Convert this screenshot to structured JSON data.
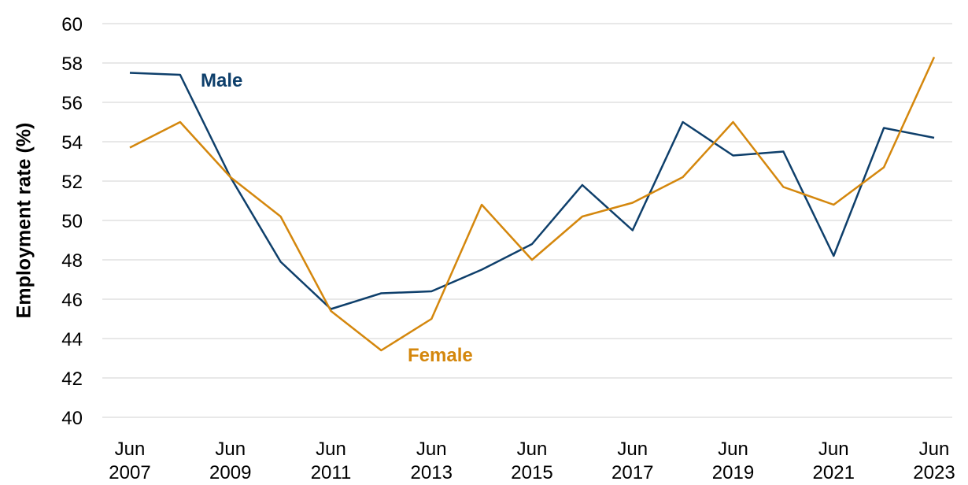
{
  "chart_data": {
    "type": "line",
    "y_label": "Employment rate (%)",
    "categories": [
      "Jun 2007",
      null,
      "Jun 2009",
      null,
      "Jun 2011",
      null,
      "Jun 2013",
      null,
      "Jun 2015",
      null,
      "Jun 2017",
      null,
      "Jun 2019",
      null,
      "Jun 2021",
      null,
      "Jun 2023"
    ],
    "series": [
      {
        "name": "Male",
        "color": "#0e3f6b",
        "values": [
          57.5,
          57.4,
          52.2,
          47.9,
          45.5,
          46.3,
          46.4,
          47.5,
          48.8,
          51.8,
          49.5,
          55.0,
          53.3,
          53.5,
          48.2,
          54.7,
          54.2
        ]
      },
      {
        "name": "Female",
        "color": "#d4870d",
        "values": [
          53.7,
          55.0,
          52.2,
          50.2,
          45.4,
          43.4,
          45.0,
          50.8,
          48.0,
          50.2,
          50.9,
          52.2,
          55.0,
          51.7,
          50.8,
          52.7,
          58.3
        ]
      }
    ],
    "ylim": [
      40,
      60
    ],
    "yticks": [
      40,
      42,
      44,
      46,
      48,
      50,
      52,
      54,
      56,
      58,
      60
    ],
    "grid": true
  }
}
